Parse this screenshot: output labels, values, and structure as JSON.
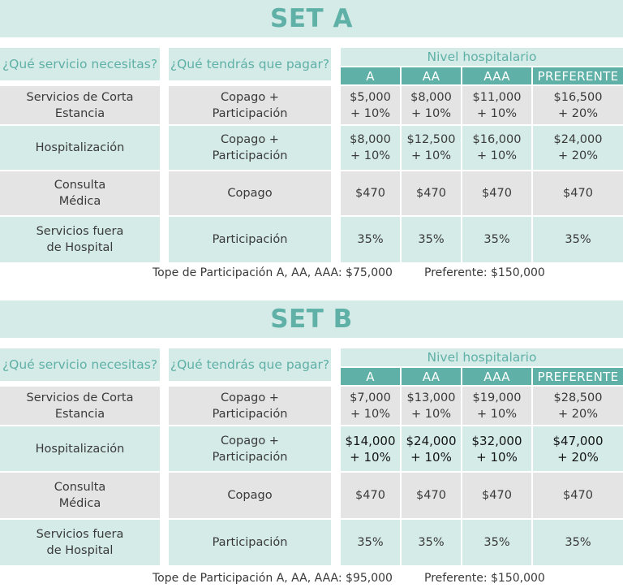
{
  "sets": [
    {
      "title": "SET A",
      "q_service": "¿Qué servicio necesitas?",
      "q_pay": "¿Qué tendrás que pagar?",
      "nivel": "Nivel hospitalario",
      "levels": [
        "A",
        "AA",
        "AAA",
        "PREFERENTE"
      ],
      "rows": [
        {
          "service": [
            "Servicios de Corta",
            "Estancia"
          ],
          "pay": [
            "Copago +",
            "Participación"
          ],
          "values": [
            [
              "$5,000",
              "+ 10%"
            ],
            [
              "$8,000",
              "+ 10%"
            ],
            [
              "$11,000",
              "+ 10%"
            ],
            [
              "$16,500",
              "+ 20%"
            ]
          ]
        },
        {
          "service": [
            "Hospitalización"
          ],
          "pay": [
            "Copago +",
            "Participación"
          ],
          "values": [
            [
              "$8,000",
              "+ 10%"
            ],
            [
              "$12,500",
              "+ 10%"
            ],
            [
              "$16,000",
              "+ 10%"
            ],
            [
              "$24,000",
              "+ 20%"
            ]
          ]
        },
        {
          "service": [
            "Consulta",
            "Médica"
          ],
          "pay": [
            "Copago"
          ],
          "values": [
            [
              "$470"
            ],
            [
              "$470"
            ],
            [
              "$470"
            ],
            [
              "$470"
            ]
          ]
        },
        {
          "service": [
            "Servicios fuera",
            "de Hospital"
          ],
          "pay": [
            "Participación"
          ],
          "values": [
            [
              "35%"
            ],
            [
              "35%"
            ],
            [
              "35%"
            ],
            [
              "35%"
            ]
          ]
        }
      ],
      "tope_left": "Tope de Participación A, AA, AAA: $75,000",
      "tope_right": "Preferente: $150,000"
    },
    {
      "title": "SET B",
      "q_service": "¿Qué servicio necesitas?",
      "q_pay": "¿Qué tendrás que pagar?",
      "nivel": "Nivel hospitalario",
      "levels": [
        "A",
        "AA",
        "AAA",
        "PREFERENTE"
      ],
      "rows": [
        {
          "service": [
            "Servicios de Corta",
            "Estancia"
          ],
          "pay": [
            "Copago +",
            "Participación"
          ],
          "values": [
            [
              "$7,000",
              "+ 10%"
            ],
            [
              "$13,000",
              "+ 10%"
            ],
            [
              "$19,000",
              "+ 10%"
            ],
            [
              "$28,500",
              "+ 20%"
            ]
          ]
        },
        {
          "service": [
            "Hospitalización"
          ],
          "pay": [
            "Copago +",
            "Participación"
          ],
          "values": [
            [
              "$14,000",
              "+ 10%"
            ],
            [
              "$24,000",
              "+ 10%"
            ],
            [
              "$32,000",
              "+ 10%"
            ],
            [
              "$47,000",
              "+ 20%"
            ]
          ]
        },
        {
          "service": [
            "Consulta",
            "Médica"
          ],
          "pay": [
            "Copago"
          ],
          "values": [
            [
              "$470"
            ],
            [
              "$470"
            ],
            [
              "$470"
            ],
            [
              "$470"
            ]
          ]
        },
        {
          "service": [
            "Servicios fuera",
            "de Hospital"
          ],
          "pay": [
            "Participación"
          ],
          "values": [
            [
              "35%"
            ],
            [
              "35%"
            ],
            [
              "35%"
            ],
            [
              "35%"
            ]
          ]
        }
      ],
      "tope_left": "Tope de Participación A, AA, AAA: $95,000",
      "tope_right": "Preferente: $150,000"
    }
  ],
  "colors": {
    "teal_light": "#d4ebe8",
    "teal": "#5fb0a6",
    "gray": "#e4e4e4",
    "text": "#3a3a3a"
  }
}
